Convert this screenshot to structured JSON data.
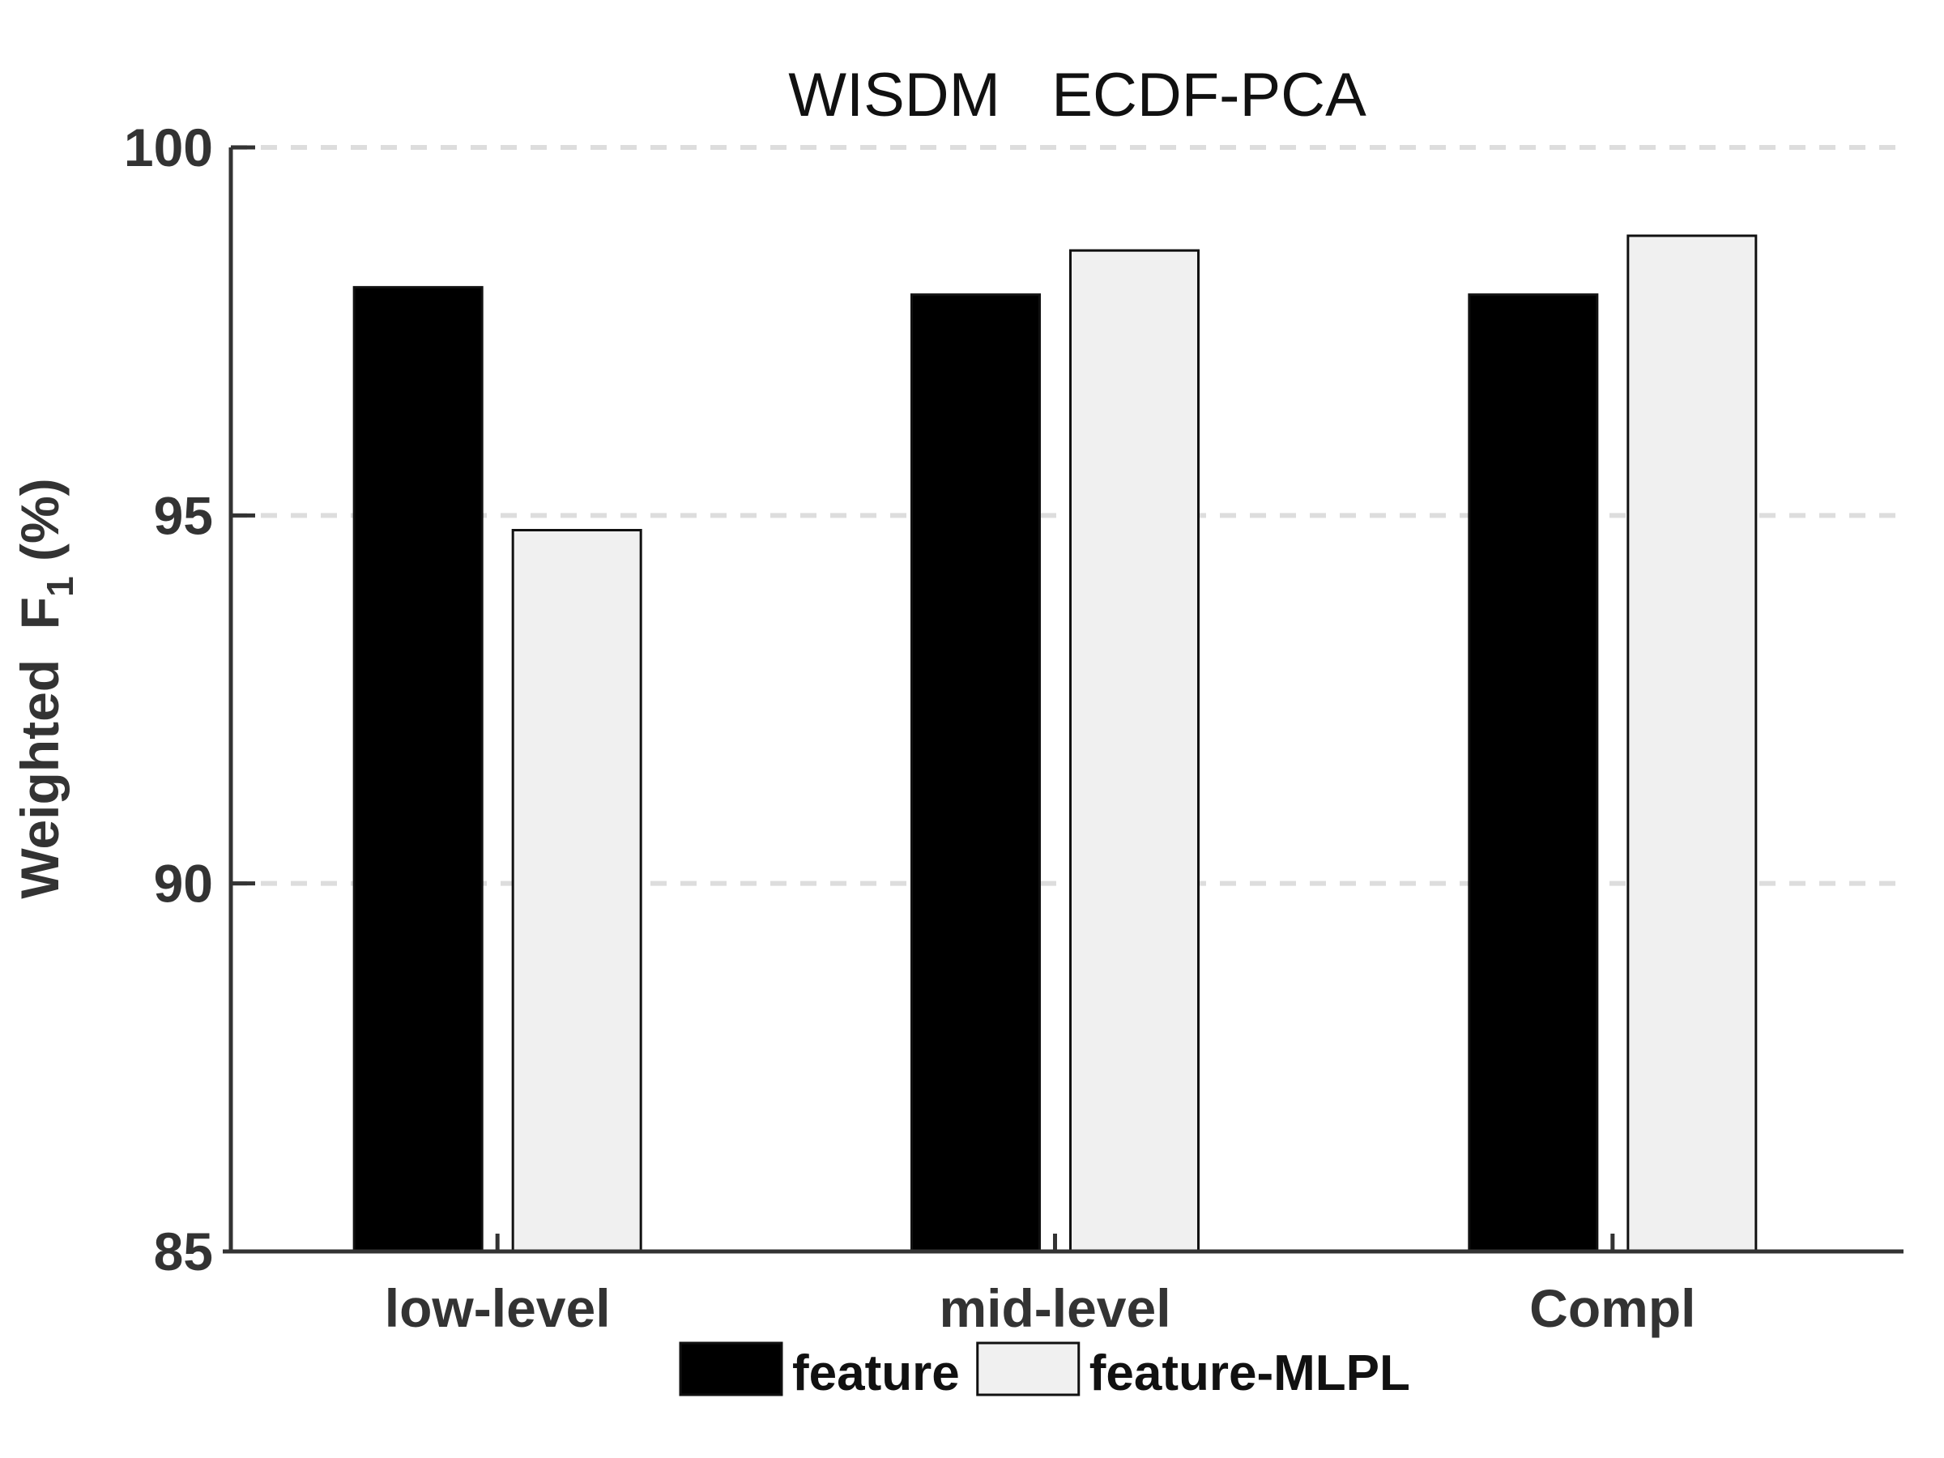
{
  "chart_data": {
    "type": "bar",
    "title": "WISDM   ECDF-PCA",
    "xlabel": "",
    "ylabel": "Weighted  F",
    "ylabel_subscript": "1",
    "ylabel_suffix": " (%)",
    "categories": [
      "low-level",
      "mid-level",
      "Compl"
    ],
    "series": [
      {
        "name": "feature",
        "values": [
          98.1,
          98.0,
          98.0
        ],
        "color": "#000000"
      },
      {
        "name": "feature-MLPL",
        "values": [
          94.8,
          98.6,
          98.8
        ],
        "color": "#f0f0f0"
      }
    ],
    "ylim": [
      85,
      100
    ],
    "yticks": [
      85,
      90,
      95,
      100
    ],
    "grid": true,
    "legend_position": "bottom"
  }
}
